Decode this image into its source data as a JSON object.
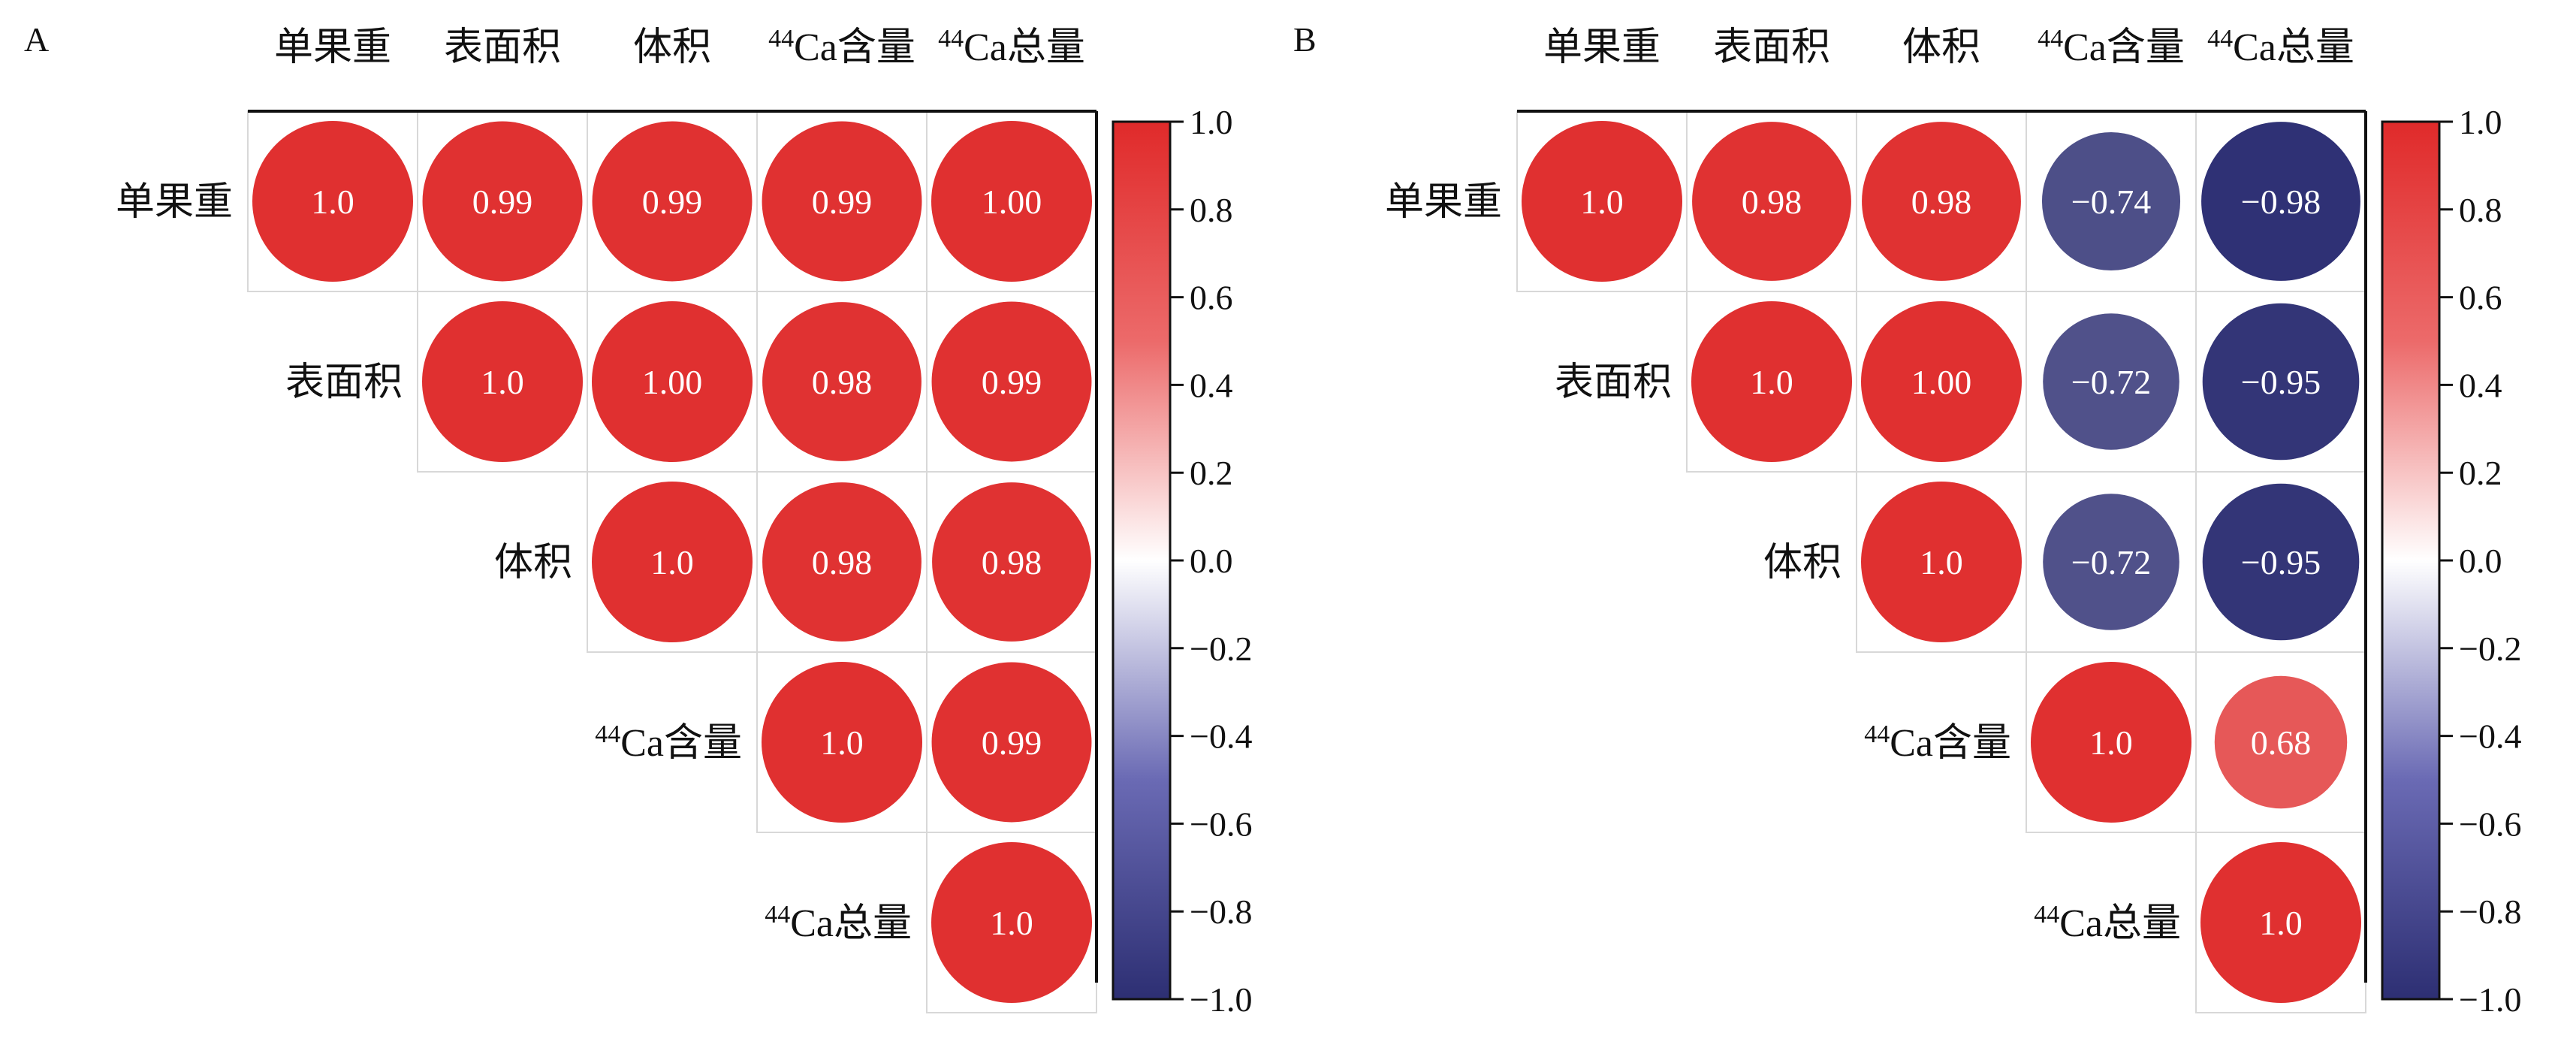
{
  "figure": {
    "panels": [
      "A",
      "B"
    ]
  },
  "colorbar": {
    "ticks": [
      "1.0",
      "0.8",
      "0.6",
      "0.4",
      "0.2",
      "0.0",
      "−0.2",
      "−0.4",
      "−0.6",
      "−0.8",
      "−1.0"
    ],
    "range": [
      -1.0,
      1.0
    ],
    "colors": {
      "negative": "#2d2f73",
      "zero": "#ffffff",
      "positive": "#e03030"
    }
  },
  "chart_data": [
    {
      "type": "heatmap",
      "subtype": "correlation-upper-triangle",
      "panel": "A",
      "variables": [
        {
          "pre": "",
          "sup": "",
          "name": "单果重"
        },
        {
          "pre": "",
          "sup": "",
          "name": "表面积"
        },
        {
          "pre": "",
          "sup": "",
          "name": "体积"
        },
        {
          "pre": "",
          "sup": "44",
          "name": "Ca含量"
        },
        {
          "pre": "",
          "sup": "44",
          "name": "Ca总量"
        }
      ],
      "matrix": [
        [
          1.0,
          0.99,
          0.99,
          0.99,
          1.0
        ],
        [
          null,
          1.0,
          1.0,
          0.98,
          0.99
        ],
        [
          null,
          null,
          1.0,
          0.98,
          0.98
        ],
        [
          null,
          null,
          null,
          1.0,
          0.99
        ],
        [
          null,
          null,
          null,
          null,
          1.0
        ]
      ],
      "labels": [
        [
          "1.0",
          "0.99",
          "0.99",
          "0.99",
          "1.00"
        ],
        [
          "",
          "1.0",
          "1.00",
          "0.98",
          "0.99"
        ],
        [
          "",
          "",
          "1.0",
          "0.98",
          "0.98"
        ],
        [
          "",
          "",
          "",
          "1.0",
          "0.99"
        ],
        [
          "",
          "",
          "",
          "",
          "1.0"
        ]
      ],
      "color_range": [
        -1.0,
        1.0
      ],
      "legend": "right colorbar"
    },
    {
      "type": "heatmap",
      "subtype": "correlation-upper-triangle",
      "panel": "B",
      "variables": [
        {
          "pre": "",
          "sup": "",
          "name": "单果重"
        },
        {
          "pre": "",
          "sup": "",
          "name": "表面积"
        },
        {
          "pre": "",
          "sup": "",
          "name": "体积"
        },
        {
          "pre": "",
          "sup": "44",
          "name": "Ca含量"
        },
        {
          "pre": "",
          "sup": "44",
          "name": "Ca总量"
        }
      ],
      "matrix": [
        [
          1.0,
          0.98,
          0.98,
          -0.74,
          -0.98
        ],
        [
          null,
          1.0,
          1.0,
          -0.72,
          -0.95
        ],
        [
          null,
          null,
          1.0,
          -0.72,
          -0.95
        ],
        [
          null,
          null,
          null,
          1.0,
          0.68
        ],
        [
          null,
          null,
          null,
          null,
          1.0
        ]
      ],
      "labels": [
        [
          "1.0",
          "0.98",
          "0.98",
          "−0.74",
          "−0.98"
        ],
        [
          "",
          "1.0",
          "1.00",
          "−0.72",
          "−0.95"
        ],
        [
          "",
          "",
          "1.0",
          "−0.72",
          "−0.95"
        ],
        [
          "",
          "",
          "",
          "1.0",
          "0.68"
        ],
        [
          "",
          "",
          "",
          "",
          "1.0"
        ]
      ],
      "color_range": [
        -1.0,
        1.0
      ],
      "legend": "right colorbar"
    }
  ]
}
